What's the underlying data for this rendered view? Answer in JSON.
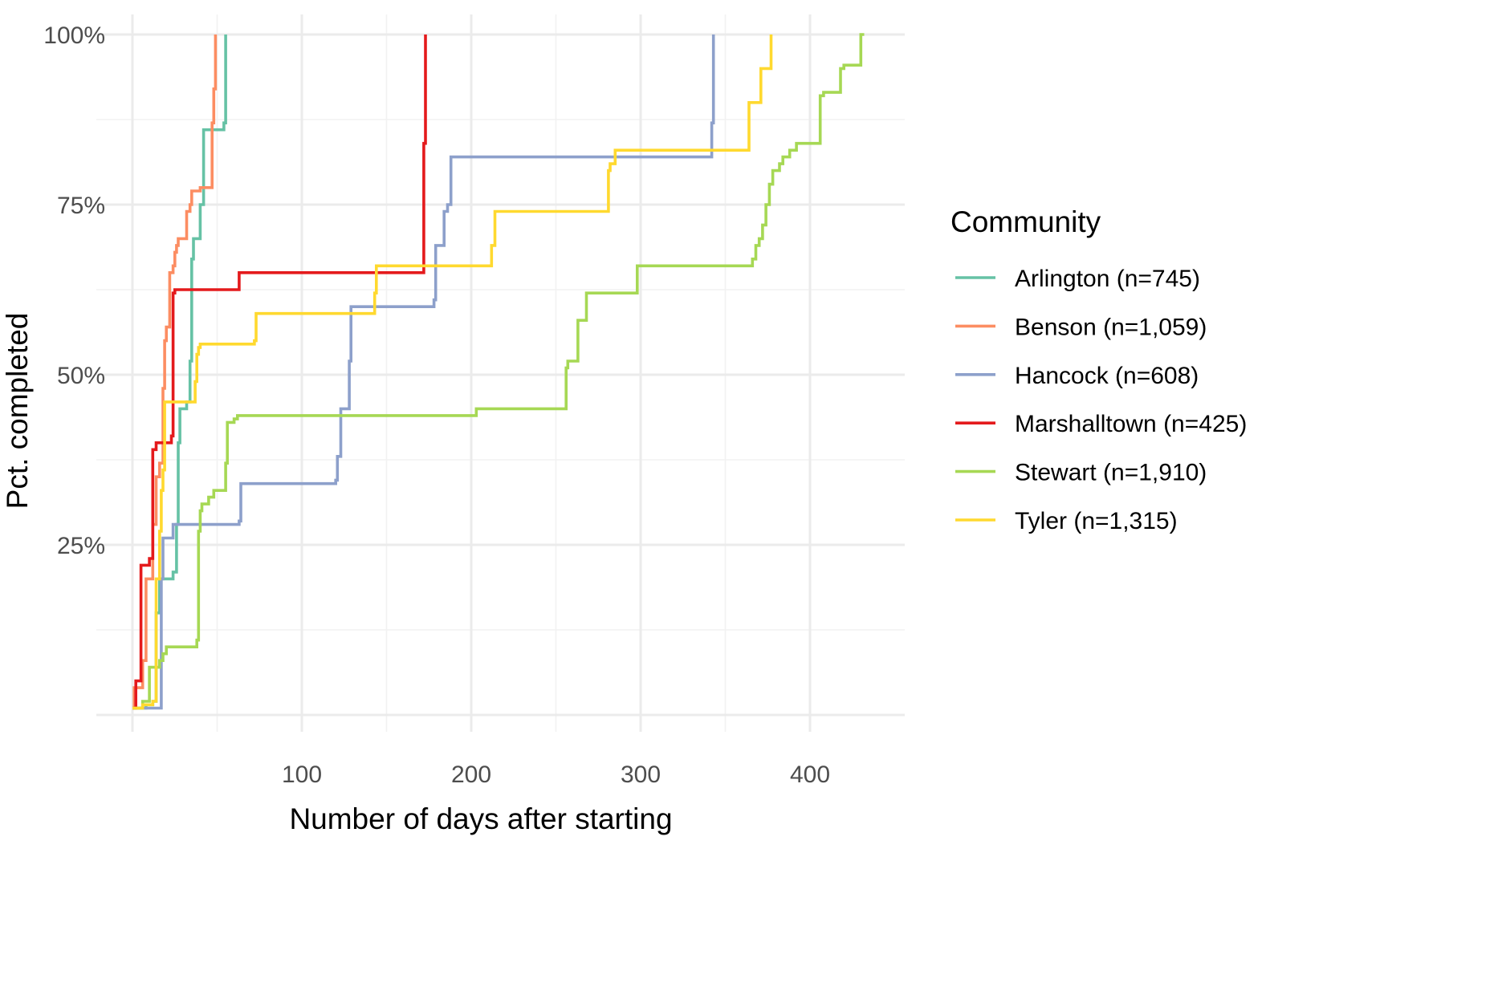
{
  "chart_data": {
    "type": "line",
    "line_shape": "step",
    "xlabel": "Number of days after starting",
    "ylabel": "Pct. completed",
    "xlim": [
      -20,
      450
    ],
    "ylim": [
      -0.01,
      1.0
    ],
    "x_ticks": [
      100,
      200,
      300,
      400
    ],
    "y_ticks": [
      0.25,
      0.5,
      0.75,
      1.0
    ],
    "y_tick_labels": [
      "25%",
      "50%",
      "75%",
      "100%"
    ],
    "grid": true,
    "legend": {
      "title": "Community",
      "position": "right"
    },
    "series": [
      {
        "name": "Arlington (n=745)",
        "color": "#66C2A5",
        "x": [
          0,
          8,
          12,
          14,
          16,
          24,
          26,
          27,
          28,
          32,
          34,
          35,
          36,
          40,
          42,
          54,
          55
        ],
        "y": [
          0.01,
          0.015,
          0.02,
          0.15,
          0.2,
          0.21,
          0.28,
          0.4,
          0.45,
          0.46,
          0.52,
          0.67,
          0.7,
          0.75,
          0.86,
          0.87,
          1.0
        ]
      },
      {
        "name": "Benson (n=1,059)",
        "color": "#FC8D62",
        "x": [
          0,
          1,
          6,
          8,
          12,
          14,
          16,
          18,
          19,
          20,
          22,
          24,
          25,
          26,
          27,
          28,
          32,
          34,
          35,
          36,
          40,
          47,
          48,
          49
        ],
        "y": [
          0.01,
          0.04,
          0.08,
          0.2,
          0.28,
          0.35,
          0.37,
          0.48,
          0.55,
          0.57,
          0.65,
          0.66,
          0.68,
          0.69,
          0.7,
          0.7,
          0.74,
          0.75,
          0.77,
          0.77,
          0.775,
          0.87,
          0.92,
          1.0
        ]
      },
      {
        "name": "Hancock (n=608)",
        "color": "#8DA0CB",
        "x": [
          0,
          15,
          17,
          18,
          24,
          63,
          64,
          120,
          121,
          123,
          128,
          129,
          130,
          178,
          179,
          184,
          186,
          188,
          341,
          342,
          343
        ],
        "y": [
          0.01,
          0.01,
          0.2,
          0.26,
          0.28,
          0.285,
          0.34,
          0.345,
          0.38,
          0.45,
          0.52,
          0.6,
          0.6,
          0.61,
          0.69,
          0.74,
          0.75,
          0.82,
          0.82,
          0.87,
          1.0
        ]
      },
      {
        "name": "Marshalltown (n=425)",
        "color": "#E41A1C",
        "x": [
          0,
          2,
          5,
          10,
          12,
          14,
          23,
          24,
          25,
          63,
          171,
          172,
          173
        ],
        "y": [
          0.01,
          0.05,
          0.22,
          0.23,
          0.39,
          0.4,
          0.41,
          0.62,
          0.625,
          0.65,
          0.65,
          0.84,
          1.0
        ]
      },
      {
        "name": "Stewart (n=1,910)",
        "color": "#A6D854",
        "x": [
          0,
          6,
          10,
          16,
          18,
          20,
          24,
          28,
          38,
          39,
          40,
          41,
          43,
          45,
          48,
          55,
          56,
          57,
          60,
          62,
          72,
          200,
          203,
          255,
          256,
          257,
          259,
          260,
          261,
          263,
          264,
          266,
          268,
          272,
          273,
          274,
          276,
          278,
          280,
          282,
          284,
          286,
          288,
          290,
          292,
          294,
          296,
          298,
          300,
          302,
          304,
          306,
          308,
          310,
          312,
          314,
          316,
          318,
          320,
          322,
          324,
          326,
          328,
          330,
          332,
          334,
          336,
          338,
          340,
          342,
          344,
          346,
          348,
          350,
          352,
          354,
          356,
          358,
          360,
          362,
          364,
          366,
          368,
          370,
          372,
          374,
          376,
          378,
          380,
          382,
          384,
          386,
          388,
          390,
          392,
          394,
          396,
          398,
          400,
          402,
          404,
          406,
          408,
          410,
          412,
          414,
          416,
          418,
          420,
          422,
          424,
          426,
          428,
          430,
          432
        ],
        "y": [
          0.01,
          0.02,
          0.07,
          0.08,
          0.09,
          0.1,
          0.1,
          0.1,
          0.11,
          0.27,
          0.3,
          0.31,
          0.31,
          0.32,
          0.33,
          0.37,
          0.43,
          0.43,
          0.435,
          0.44,
          0.44,
          0.44,
          0.45,
          0.45,
          0.51,
          0.52,
          0.52,
          0.52,
          0.52,
          0.58,
          0.58,
          0.58,
          0.62,
          0.62,
          0.62,
          0.62,
          0.62,
          0.62,
          0.62,
          0.62,
          0.62,
          0.62,
          0.62,
          0.62,
          0.62,
          0.62,
          0.62,
          0.66,
          0.66,
          0.66,
          0.66,
          0.66,
          0.66,
          0.66,
          0.66,
          0.66,
          0.66,
          0.66,
          0.66,
          0.66,
          0.66,
          0.66,
          0.66,
          0.66,
          0.66,
          0.66,
          0.66,
          0.66,
          0.66,
          0.66,
          0.66,
          0.66,
          0.66,
          0.66,
          0.66,
          0.66,
          0.66,
          0.66,
          0.66,
          0.66,
          0.66,
          0.67,
          0.69,
          0.7,
          0.72,
          0.75,
          0.78,
          0.8,
          0.8,
          0.81,
          0.82,
          0.82,
          0.83,
          0.83,
          0.84,
          0.84,
          0.84,
          0.84,
          0.84,
          0.84,
          0.84,
          0.91,
          0.915,
          0.915,
          0.915,
          0.915,
          0.915,
          0.95,
          0.955,
          0.955,
          0.955,
          0.955,
          0.955,
          1.0,
          1.0
        ]
      },
      {
        "name": "Tyler (n=1,315)",
        "color": "#FFD92F",
        "x": [
          0,
          6,
          12,
          14,
          16,
          17,
          18,
          19,
          20,
          37,
          38,
          39,
          40,
          72,
          73,
          142,
          143,
          144,
          210,
          212,
          214,
          280,
          281,
          282,
          284,
          285,
          363,
          364,
          370,
          371,
          377
        ],
        "y": [
          0.01,
          0.015,
          0.02,
          0.2,
          0.27,
          0.33,
          0.36,
          0.46,
          0.46,
          0.49,
          0.53,
          0.54,
          0.545,
          0.55,
          0.59,
          0.59,
          0.62,
          0.66,
          0.66,
          0.69,
          0.74,
          0.74,
          0.8,
          0.81,
          0.81,
          0.83,
          0.83,
          0.9,
          0.9,
          0.95,
          1.0
        ]
      }
    ]
  }
}
